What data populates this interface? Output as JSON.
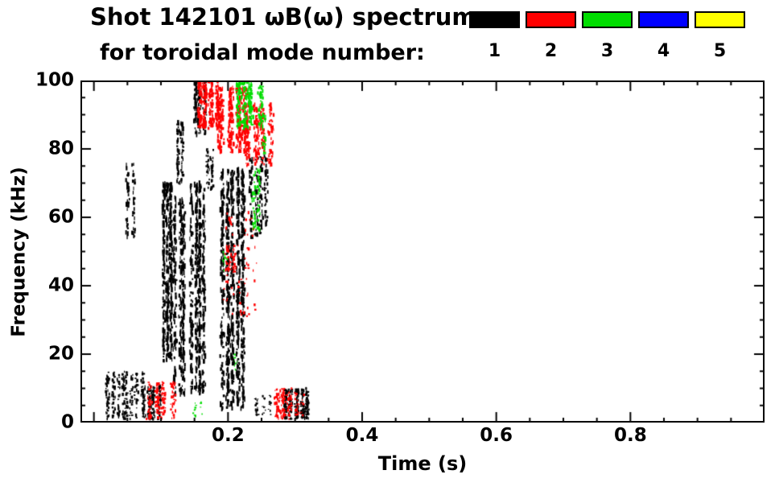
{
  "title": "Shot 142101 ωB(ω) spectrum",
  "subtitle": "for toroidal mode number:",
  "background": "#ffffff",
  "legend": {
    "modes": [
      {
        "label": "1",
        "color": "#000000"
      },
      {
        "label": "2",
        "color": "#ff0000"
      },
      {
        "label": "3",
        "color": "#00dd00"
      },
      {
        "label": "4",
        "color": "#0000ff"
      },
      {
        "label": "5",
        "color": "#ffff00"
      }
    ]
  },
  "axes": {
    "x_major_step": 0.2,
    "x_minor_step": 0.05,
    "y_major_step": 20,
    "y_minor_step": 5,
    "major_tick_len": 13,
    "minor_tick_len": 6
  },
  "chart_data": {
    "type": "scatter",
    "title": "Shot 142101 ωB(ω) spectrum for toroidal mode number",
    "xlabel": "Time (s)",
    "ylabel": "Frequency (kHz)",
    "xlim": [
      -0.02,
      1.0
    ],
    "ylim": [
      0,
      100
    ],
    "xticks": [
      0.2,
      0.4,
      0.6,
      0.8
    ],
    "xtick_labels": [
      "0.2",
      "0.4",
      "0.6",
      "0.8"
    ],
    "yticks": [
      0,
      20,
      40,
      60,
      80,
      100
    ],
    "ytick_labels": [
      "0",
      "20",
      "40",
      "60",
      "80",
      "100"
    ],
    "grid": false,
    "legend_position": "top-right",
    "series": [
      {
        "name": "n=1",
        "color": "#000000",
        "clusters": [
          {
            "t": [
              0.018,
              0.075
            ],
            "f": [
              1,
              15
            ],
            "n": 260,
            "streaks": 8,
            "dot": [
              2,
              3
            ]
          },
          {
            "t": [
              0.048,
              0.062
            ],
            "f": [
              54,
              76
            ],
            "n": 70,
            "streaks": 2,
            "dot": [
              2,
              4
            ]
          },
          {
            "t": [
              0.07,
              0.1
            ],
            "f": [
              1,
              11
            ],
            "n": 150,
            "streaks": 4,
            "dot": [
              2,
              3
            ]
          },
          {
            "t": [
              0.1,
              0.118
            ],
            "f": [
              18,
              70
            ],
            "n": 380,
            "streaks": 3,
            "dot": [
              2,
              5
            ]
          },
          {
            "t": [
              0.118,
              0.138
            ],
            "f": [
              8,
              66
            ],
            "n": 300,
            "streaks": 3,
            "dot": [
              2,
              5
            ]
          },
          {
            "t": [
              0.124,
              0.136
            ],
            "f": [
              70,
              88
            ],
            "n": 90,
            "streaks": 2,
            "dot": [
              2,
              4
            ]
          },
          {
            "t": [
              0.143,
              0.168
            ],
            "f": [
              8,
              70
            ],
            "n": 450,
            "streaks": 4,
            "dot": [
              2,
              5
            ]
          },
          {
            "t": [
              0.148,
              0.168
            ],
            "f": [
              84,
              100
            ],
            "n": 130,
            "streaks": 3,
            "dot": [
              2,
              4
            ]
          },
          {
            "t": [
              0.188,
              0.225
            ],
            "f": [
              4,
              74
            ],
            "n": 800,
            "streaks": 5,
            "dot": [
              2,
              5
            ]
          },
          {
            "t": [
              0.232,
              0.262
            ],
            "f": [
              54,
              78
            ],
            "n": 160,
            "streaks": 4,
            "dot": [
              2,
              4
            ]
          },
          {
            "t": [
              0.282,
              0.322
            ],
            "f": [
              1,
              10
            ],
            "n": 260,
            "streaks": 5,
            "dot": [
              2,
              3
            ]
          },
          {
            "t": [
              0.24,
              0.265
            ],
            "f": [
              2,
              8
            ],
            "n": 40,
            "streaks": 3,
            "dot": [
              2,
              2
            ]
          },
          {
            "t": [
              0.165,
              0.178
            ],
            "f": [
              68,
              80
            ],
            "n": 50,
            "streaks": 2,
            "dot": [
              2,
              3
            ]
          }
        ]
      },
      {
        "name": "n=2",
        "color": "#ff0000",
        "clusters": [
          {
            "t": [
              0.152,
              0.192
            ],
            "f": [
              86,
              100
            ],
            "n": 260,
            "streaks": 4,
            "dot": [
              2,
              4
            ]
          },
          {
            "t": [
              0.185,
              0.232
            ],
            "f": [
              79,
              98
            ],
            "n": 340,
            "streaks": 4,
            "dot": [
              2,
              4
            ]
          },
          {
            "t": [
              0.225,
              0.268
            ],
            "f": [
              75,
              93
            ],
            "n": 220,
            "streaks": 4,
            "dot": [
              2,
              4
            ]
          },
          {
            "t": [
              0.078,
              0.122
            ],
            "f": [
              1,
              12
            ],
            "n": 140,
            "streaks": 4,
            "dot": [
              2,
              3
            ]
          },
          {
            "t": [
              0.268,
              0.298
            ],
            "f": [
              1,
              10
            ],
            "n": 110,
            "streaks": 3,
            "dot": [
              2,
              3
            ]
          },
          {
            "t": [
              0.19,
              0.245
            ],
            "f": [
              28,
              62
            ],
            "n": 70,
            "streaks": 5,
            "dot": [
              2,
              3
            ]
          },
          {
            "t": [
              0.196,
              0.212
            ],
            "f": [
              43,
              52
            ],
            "n": 45,
            "streaks": 2,
            "dot": [
              2,
              3
            ]
          },
          {
            "t": [
              0.298,
              0.318
            ],
            "f": [
              2,
              9
            ],
            "n": 30,
            "streaks": 2,
            "dot": [
              2,
              2
            ]
          }
        ]
      },
      {
        "name": "n=3",
        "color": "#00dd00",
        "clusters": [
          {
            "t": [
              0.208,
              0.252
            ],
            "f": [
              86,
              100
            ],
            "n": 220,
            "streaks": 4,
            "dot": [
              2,
              4
            ]
          },
          {
            "t": [
              0.236,
              0.252
            ],
            "f": [
              56,
              74
            ],
            "n": 60,
            "streaks": 2,
            "dot": [
              2,
              3
            ]
          },
          {
            "t": [
              0.148,
              0.162
            ],
            "f": [
              1,
              6
            ],
            "n": 12,
            "streaks": 2,
            "dot": [
              2,
              2
            ]
          },
          {
            "t": [
              0.208,
              0.222
            ],
            "f": [
              15,
              20
            ],
            "n": 10,
            "streaks": 1,
            "dot": [
              2,
              2
            ]
          },
          {
            "t": [
              0.19,
              0.205
            ],
            "f": [
              44,
              50
            ],
            "n": 10,
            "streaks": 1,
            "dot": [
              2,
              2
            ]
          },
          {
            "t": [
              0.25,
              0.258
            ],
            "f": [
              78,
              90
            ],
            "n": 25,
            "streaks": 1,
            "dot": [
              2,
              3
            ]
          }
        ]
      },
      {
        "name": "n=4",
        "color": "#0000ff",
        "clusters": []
      },
      {
        "name": "n=5",
        "color": "#ffff00",
        "clusters": []
      }
    ]
  }
}
